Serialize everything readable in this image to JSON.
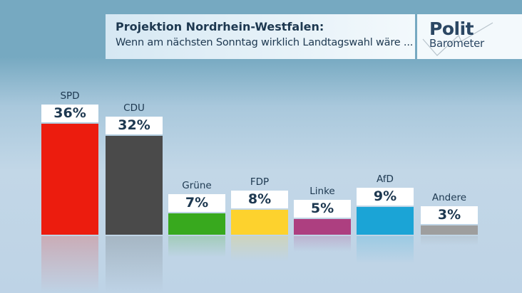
{
  "header": {
    "title": "Projektion Nordrhein-Westfalen:",
    "subtitle": "Wenn am nächsten Sonntag wirklich Landtagswahl wäre ..."
  },
  "logo": {
    "line1": "Polit",
    "line2": "Barometer"
  },
  "chart_data": {
    "type": "bar",
    "title": "Projektion Nordrhein-Westfalen:",
    "subtitle": "Wenn am nächsten Sonntag wirklich Landtagswahl wäre ...",
    "xlabel": "",
    "ylabel": "",
    "ylim": [
      0,
      40
    ],
    "grid": false,
    "categories": [
      "SPD",
      "CDU",
      "Grüne",
      "FDP",
      "Linke",
      "AfD",
      "Andere"
    ],
    "values": [
      36,
      32,
      7,
      8,
      5,
      9,
      3
    ],
    "value_labels": [
      "36%",
      "32%",
      "7%",
      "8%",
      "5%",
      "9%",
      "3%"
    ],
    "colors": [
      "#ec1c0e",
      "#4a4a4a",
      "#38a91e",
      "#fdd22d",
      "#ad3f80",
      "#1ba4d6",
      "#9e9e9e"
    ]
  }
}
